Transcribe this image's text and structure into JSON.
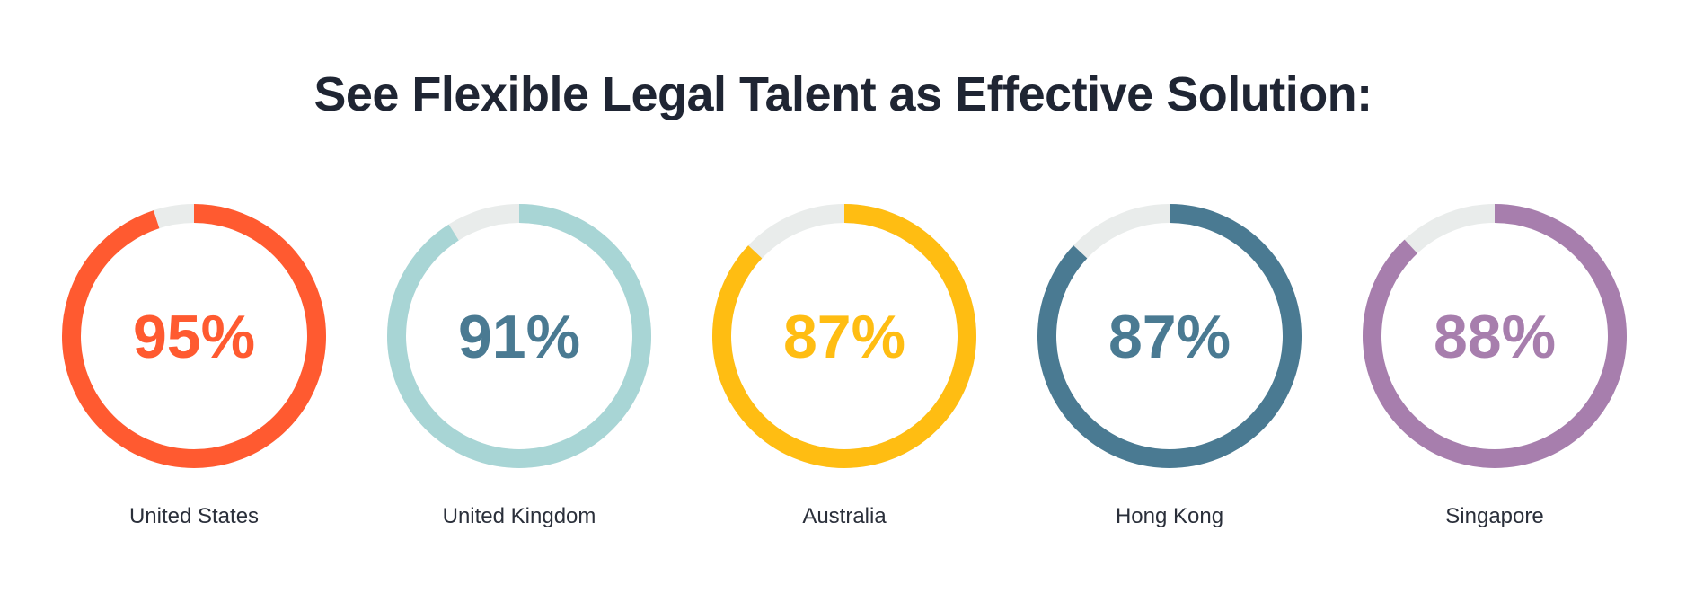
{
  "page": {
    "title": "See Flexible Legal Talent as Effective Solution:"
  },
  "colors": {
    "track": "#e9eceb",
    "title_text": "#1f2533",
    "label_text": "#2a2f3a"
  },
  "chart_data": {
    "type": "pie",
    "subtype": "donut-gauges",
    "title": "See Flexible Legal Talent as Effective Solution:",
    "unit": "%",
    "max": 100,
    "items": [
      {
        "category": "United States",
        "value": 95,
        "label": "95%",
        "ring_color": "#ff5a30",
        "text_color": "#ff5a30"
      },
      {
        "category": "United Kingdom",
        "value": 91,
        "label": "91%",
        "ring_color": "#a8d5d5",
        "text_color": "#4a7a92"
      },
      {
        "category": "Australia",
        "value": 87,
        "label": "87%",
        "ring_color": "#ffbd12",
        "text_color": "#ffbd12"
      },
      {
        "category": "Hong Kong",
        "value": 87,
        "label": "87%",
        "ring_color": "#4a7a92",
        "text_color": "#4a7a92"
      },
      {
        "category": "Singapore",
        "value": 88,
        "label": "88%",
        "ring_color": "#a77ead",
        "text_color": "#a77ead"
      }
    ]
  }
}
